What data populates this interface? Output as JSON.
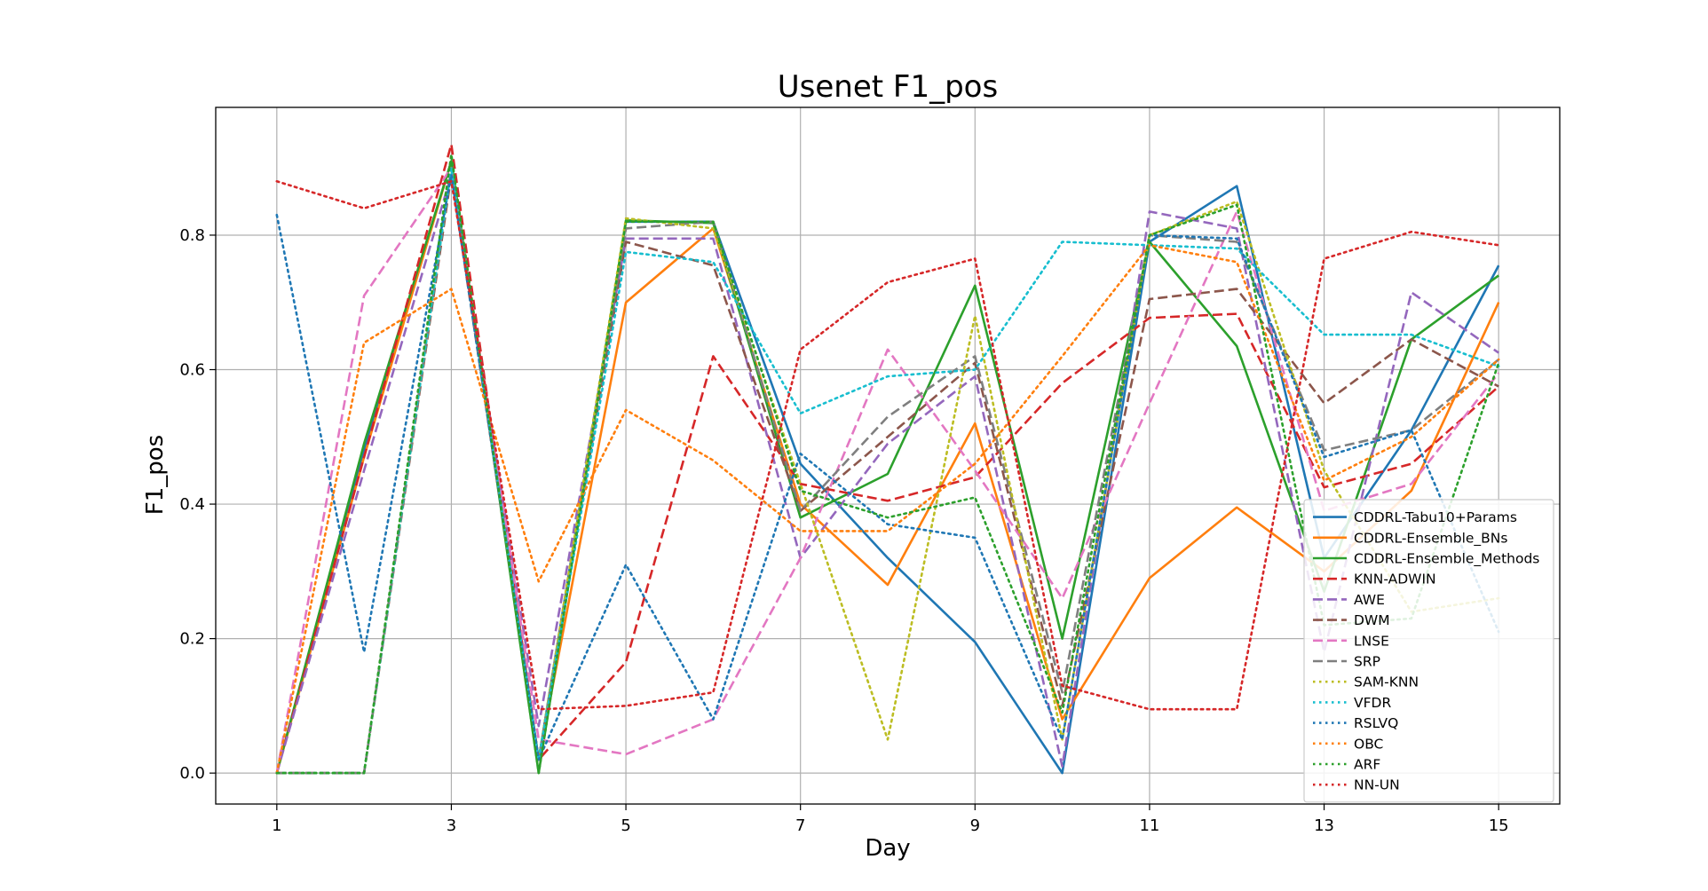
{
  "chart_data": {
    "type": "line",
    "title": "Usenet F1_pos",
    "xlabel": "Day",
    "ylabel": "F1_pos",
    "xlim": [
      0.3,
      15.7
    ],
    "ylim": [
      -0.046,
      0.99
    ],
    "xticks": [
      1,
      3,
      5,
      7,
      9,
      11,
      13,
      15
    ],
    "yticks": [
      0.0,
      0.2,
      0.4,
      0.6,
      0.8
    ],
    "xtick_labels": [
      "1",
      "3",
      "5",
      "7",
      "9",
      "11",
      "13",
      "15"
    ],
    "ytick_labels": [
      "0.0",
      "0.2",
      "0.4",
      "0.6",
      "0.8"
    ],
    "grid": true,
    "legend_position": "lower-right",
    "x": [
      1,
      2,
      3,
      4,
      5,
      6,
      7,
      8,
      9,
      10,
      11,
      12,
      13,
      14,
      15
    ],
    "series": [
      {
        "name": "CDDRL-Tabu10+Params",
        "color": "#1f77b4",
        "style": "solid",
        "values": [
          0.0,
          0.48,
          0.91,
          0.02,
          0.82,
          0.82,
          0.46,
          0.32,
          0.195,
          0.0,
          0.79,
          0.873,
          0.32,
          0.51,
          0.755
        ]
      },
      {
        "name": "CDDRL-Ensemble_BNs",
        "color": "#ff7f0e",
        "style": "solid",
        "values": [
          0.0,
          0.47,
          0.91,
          0.02,
          0.7,
          0.81,
          0.4,
          0.28,
          0.52,
          0.08,
          0.29,
          0.395,
          0.3,
          0.42,
          0.7
        ]
      },
      {
        "name": "CDDRL-Ensemble_Methods",
        "color": "#2ca02c",
        "style": "solid",
        "values": [
          0.0,
          0.49,
          0.91,
          0.0,
          0.822,
          0.818,
          0.38,
          0.445,
          0.725,
          0.2,
          0.79,
          0.635,
          0.27,
          0.645,
          0.74
        ]
      },
      {
        "name": "KNN-ADWIN",
        "color": "#d62728",
        "style": "dashed",
        "values": [
          0.0,
          0.47,
          0.935,
          0.02,
          0.165,
          0.62,
          0.43,
          0.405,
          0.44,
          0.58,
          0.677,
          0.683,
          0.425,
          0.46,
          0.575
        ]
      },
      {
        "name": "AWE",
        "color": "#9467bd",
        "style": "dashed",
        "values": [
          0.0,
          0.45,
          0.89,
          0.07,
          0.795,
          0.795,
          0.32,
          0.49,
          0.59,
          0.01,
          0.835,
          0.81,
          0.18,
          0.715,
          0.625
        ]
      },
      {
        "name": "DWM",
        "color": "#8c564b",
        "style": "dashed",
        "values": [
          0.0,
          0.0,
          0.89,
          0.02,
          0.79,
          0.755,
          0.39,
          0.5,
          0.61,
          0.1,
          0.705,
          0.72,
          0.55,
          0.645,
          0.575
        ]
      },
      {
        "name": "LNSE",
        "color": "#e377c2",
        "style": "dashed",
        "values": [
          0.0,
          0.71,
          0.9,
          0.05,
          0.028,
          0.08,
          0.32,
          0.63,
          0.45,
          0.26,
          0.55,
          0.835,
          0.39,
          0.43,
          0.595
        ]
      },
      {
        "name": "SRP",
        "color": "#7f7f7f",
        "style": "dashed",
        "values": [
          0.0,
          0.0,
          0.9,
          0.02,
          0.81,
          0.82,
          0.39,
          0.53,
          0.62,
          0.12,
          0.8,
          0.79,
          0.48,
          0.51,
          0.615
        ]
      },
      {
        "name": "SAM-KNN",
        "color": "#bcbd22",
        "style": "dotted",
        "values": [
          0.0,
          0.0,
          0.9,
          0.02,
          0.825,
          0.81,
          0.43,
          0.05,
          0.68,
          0.05,
          0.8,
          0.85,
          0.45,
          0.24,
          0.26
        ]
      },
      {
        "name": "VFDR",
        "color": "#17becf",
        "style": "dotted",
        "values": [
          0.0,
          0.0,
          0.9,
          0.02,
          0.775,
          0.76,
          0.535,
          0.59,
          0.6,
          0.79,
          0.785,
          0.78,
          0.652,
          0.652,
          0.605
        ]
      },
      {
        "name": "RSLVQ",
        "color": "#1f77b4",
        "style": "dotted",
        "values": [
          0.83,
          0.18,
          0.89,
          0.02,
          0.31,
          0.08,
          0.475,
          0.37,
          0.35,
          0.05,
          0.8,
          0.795,
          0.47,
          0.51,
          0.21
        ]
      },
      {
        "name": "OBC",
        "color": "#ff7f0e",
        "style": "dotted",
        "values": [
          0.0,
          0.64,
          0.72,
          0.285,
          0.54,
          0.465,
          0.36,
          0.36,
          0.46,
          0.62,
          0.785,
          0.76,
          0.435,
          0.5,
          0.615
        ]
      },
      {
        "name": "ARF",
        "color": "#2ca02c",
        "style": "dotted",
        "values": [
          0.0,
          0.0,
          0.92,
          0.0,
          0.82,
          0.82,
          0.42,
          0.38,
          0.41,
          0.09,
          0.8,
          0.845,
          0.22,
          0.23,
          0.61
        ]
      },
      {
        "name": "NN-UN",
        "color": "#d62728",
        "style": "dotted",
        "values": [
          0.88,
          0.84,
          0.88,
          0.095,
          0.1,
          0.12,
          0.63,
          0.73,
          0.765,
          0.13,
          0.095,
          0.095,
          0.765,
          0.805,
          0.785
        ]
      }
    ]
  }
}
